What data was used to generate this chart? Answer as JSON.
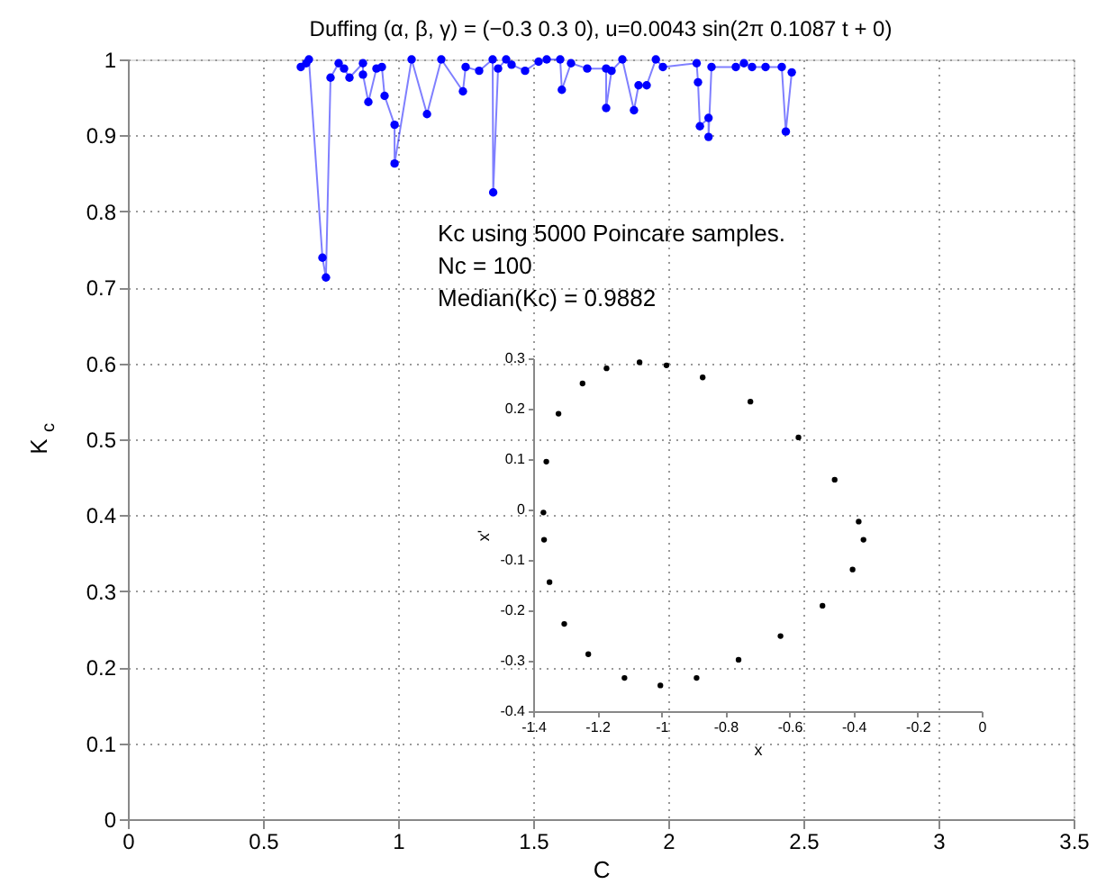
{
  "chart_data": [
    {
      "type": "line",
      "title": "Duffing (α, β, γ) = (−0.3          0.3          0),  u=0.0043 sin(2π 0.1087 t + 0)",
      "xlabel": "C",
      "ylabel": "K$_{c}$",
      "annotations": [
        "Kc using 5000 Poincare samples.",
        "Nc = 100",
        "Median(Kc) = 0.9882"
      ],
      "x": [
        0.64,
        0.66,
        0.67,
        0.72,
        0.733,
        0.75,
        0.78,
        0.8,
        0.82,
        0.87,
        0.87,
        0.89,
        0.92,
        0.94,
        0.95,
        0.987,
        0.987,
        1.05,
        1.107,
        1.16,
        1.24,
        1.25,
        1.3,
        1.35,
        1.352,
        1.37,
        1.4,
        1.42,
        1.47,
        1.52,
        1.55,
        1.6,
        1.606,
        1.64,
        1.7,
        1.77,
        1.77,
        1.79,
        1.83,
        1.873,
        1.89,
        1.92,
        1.954,
        1.98,
        2.105,
        2.11,
        2.117,
        2.149,
        2.149,
        2.16,
        2.25,
        2.28,
        2.31,
        2.36,
        2.42,
        2.435,
        2.457
      ],
      "series": [
        {
          "color": "#0000ff",
          "values": [
            0.99,
            0.995,
            1.0,
            0.739,
            0.713,
            0.976,
            0.995,
            0.988,
            0.976,
            0.995,
            0.98,
            0.944,
            0.988,
            0.99,
            0.952,
            0.914,
            0.863,
            1.0,
            0.928,
            1.0,
            0.958,
            0.99,
            0.985,
            1.0,
            0.825,
            0.988,
            1.0,
            0.993,
            0.985,
            0.997,
            1.0,
            1.0,
            0.96,
            0.995,
            0.988,
            0.988,
            0.936,
            0.985,
            1.0,
            0.933,
            0.966,
            0.966,
            1.0,
            0.99,
            0.995,
            0.97,
            0.912,
            0.923,
            0.898,
            0.99,
            0.99,
            0.995,
            0.99,
            0.99,
            0.99,
            0.905,
            0.983
          ]
        }
      ],
      "xlim": [
        0,
        3.5
      ],
      "ylim": [
        0,
        1
      ],
      "xticks": [
        0,
        0.5,
        1,
        1.5,
        2,
        2.5,
        3,
        3.5
      ],
      "yticks": [
        0,
        0.1,
        0.2,
        0.3,
        0.4,
        0.5,
        0.6,
        0.7,
        0.8,
        0.9,
        1
      ],
      "grid": true,
      "marker": "circle",
      "line_style": "solid"
    },
    {
      "type": "scatter",
      "xlabel": "x",
      "ylabel": "x'",
      "series": [
        {
          "color": "#000000",
          "x": [
            -1.368,
            -1.359,
            -1.321,
            -1.246,
            -1.171,
            -1.068,
            -0.984,
            -0.871,
            -0.722,
            -0.572,
            -0.459,
            -0.384,
            -0.369,
            -0.403,
            -0.497,
            -0.628,
            -0.759,
            -0.89,
            -1.003,
            -1.115,
            -1.228,
            -1.303,
            -1.349,
            -1.366
          ],
          "values": [
            -0.006,
            0.095,
            0.19,
            0.25,
            0.28,
            0.292,
            0.286,
            0.262,
            0.214,
            0.143,
            0.059,
            -0.024,
            -0.06,
            -0.119,
            -0.191,
            -0.251,
            -0.298,
            -0.334,
            -0.349,
            -0.334,
            -0.287,
            -0.227,
            -0.144,
            -0.06
          ]
        }
      ],
      "xlim": [
        -1.4,
        0
      ],
      "ylim": [
        -0.4,
        0.3
      ],
      "xticks": [
        -1.4,
        -1.2,
        -1,
        -0.8,
        -0.6,
        -0.4,
        -0.2,
        0
      ],
      "yticks": [
        -0.4,
        -0.3,
        -0.2,
        -0.1,
        0,
        0.1,
        0.2,
        0.3
      ],
      "grid": false,
      "marker": "circle"
    }
  ]
}
